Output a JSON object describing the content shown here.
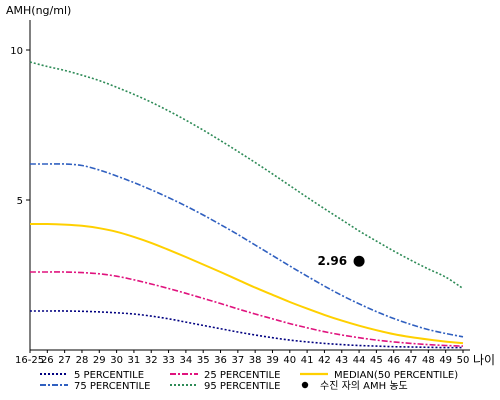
{
  "chart_data": {
    "type": "line",
    "ylabel": "AMH(ng/ml)",
    "xunit": "나이",
    "ylim": [
      0,
      11
    ],
    "yticks": [
      5,
      10
    ],
    "x_labels": [
      "16-25",
      "26",
      "27",
      "28",
      "29",
      "30",
      "31",
      "32",
      "33",
      "34",
      "35",
      "36",
      "37",
      "38",
      "39",
      "40",
      "41",
      "42",
      "43",
      "44",
      "45",
      "46",
      "47",
      "48",
      "49",
      "50"
    ],
    "series": [
      {
        "name": "5 PERCENTILE",
        "color": "#000080",
        "dash": "2,2",
        "values": [
          1.3,
          1.3,
          1.3,
          1.29,
          1.27,
          1.24,
          1.2,
          1.13,
          1.04,
          0.93,
          0.82,
          0.71,
          0.6,
          0.5,
          0.41,
          0.33,
          0.27,
          0.22,
          0.18,
          0.15,
          0.13,
          0.11,
          0.1,
          0.09,
          0.08,
          0.08
        ]
      },
      {
        "name": "25 PERCENTILE",
        "color": "#e0137e",
        "dash": "6,2,2,2",
        "values": [
          2.6,
          2.6,
          2.6,
          2.58,
          2.54,
          2.46,
          2.34,
          2.2,
          2.05,
          1.89,
          1.72,
          1.55,
          1.37,
          1.2,
          1.04,
          0.88,
          0.74,
          0.61,
          0.5,
          0.41,
          0.33,
          0.27,
          0.22,
          0.18,
          0.15,
          0.13
        ]
      },
      {
        "name": "MEDIAN(50 PERCENTILE)",
        "color": "#ffd000",
        "dash": "",
        "values": [
          4.2,
          4.2,
          4.18,
          4.14,
          4.06,
          3.94,
          3.77,
          3.57,
          3.34,
          3.1,
          2.85,
          2.6,
          2.34,
          2.08,
          1.84,
          1.6,
          1.38,
          1.17,
          0.98,
          0.81,
          0.66,
          0.53,
          0.43,
          0.35,
          0.28,
          0.23
        ]
      },
      {
        "name": "75 PERCENTILE",
        "color": "#3060c0",
        "dash": "6,2,2,2",
        "values": [
          6.2,
          6.2,
          6.2,
          6.15,
          6.0,
          5.8,
          5.58,
          5.34,
          5.08,
          4.8,
          4.5,
          4.18,
          3.85,
          3.5,
          3.15,
          2.8,
          2.46,
          2.13,
          1.82,
          1.54,
          1.28,
          1.05,
          0.85,
          0.68,
          0.55,
          0.44
        ]
      },
      {
        "name": "95 PERCENTILE",
        "color": "#2e8b57",
        "dash": "2,2",
        "values": [
          9.6,
          9.45,
          9.32,
          9.16,
          8.98,
          8.76,
          8.52,
          8.26,
          7.97,
          7.66,
          7.33,
          6.98,
          6.62,
          6.25,
          5.87,
          5.48,
          5.09,
          4.71,
          4.34,
          3.97,
          3.63,
          3.3,
          2.99,
          2.7,
          2.43,
          2.05
        ]
      }
    ],
    "point": {
      "name": "수진 자의 AMH 농도",
      "x_index": 19,
      "value": 2.96,
      "label": "2.96",
      "color": "#000000"
    },
    "legend": [
      {
        "key": "p5",
        "label": "5 PERCENTILE",
        "color": "#000080",
        "dash": "2,2"
      },
      {
        "key": "p25",
        "label": "25 PERCENTILE",
        "color": "#e0137e",
        "dash": "6,2,2,2"
      },
      {
        "key": "median",
        "label": "MEDIAN(50 PERCENTILE)",
        "color": "#ffd000",
        "dash": ""
      },
      {
        "key": "p75",
        "label": "75 PERCENTILE",
        "color": "#3060c0",
        "dash": "6,2,2,2"
      },
      {
        "key": "p95",
        "label": "95 PERCENTILE",
        "color": "#2e8b57",
        "dash": "2,2"
      },
      {
        "key": "patient",
        "label": "수진 자의 AMH 농도",
        "color": "#000000",
        "marker": "dot"
      }
    ]
  }
}
